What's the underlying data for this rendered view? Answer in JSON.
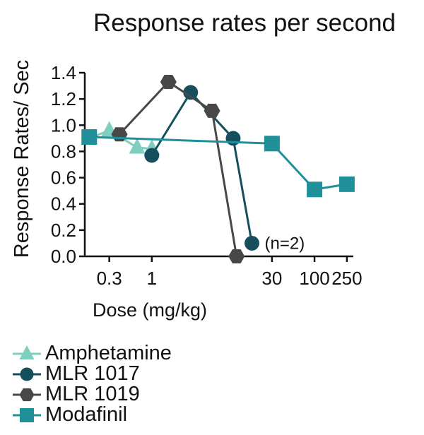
{
  "chart_data": {
    "type": "line",
    "title": "Response rates per second",
    "xlabel": "Dose (mg/kg)",
    "ylabel": "Response Rates/ Sec",
    "x_scale": "log",
    "xlim": [
      0.15,
      300
    ],
    "ylim": [
      0,
      1.4
    ],
    "x_ticks": [
      0.3,
      1,
      30,
      100,
      250
    ],
    "x_tick_labels": [
      "0.3",
      "1",
      "30",
      "100",
      "250"
    ],
    "y_ticks": [
      0,
      0.2,
      0.4,
      0.6,
      0.8,
      1.0,
      1.2,
      1.4
    ],
    "y_tick_labels": [
      "0.0",
      "0.2",
      "0.4",
      "0.6",
      "0.8",
      "1.0",
      "1.2",
      "1.4"
    ],
    "annotation": {
      "text": "(n=2)",
      "x": 17,
      "y": 0.1
    },
    "legend_position": "bottom-left",
    "series": [
      {
        "name": "Amphetamine",
        "color": "#7ecfbf",
        "marker": "triangle",
        "points": [
          [
            0.17,
            0.9
          ],
          [
            0.3,
            0.96
          ],
          [
            0.66,
            0.83
          ],
          [
            1,
            0.82
          ]
        ]
      },
      {
        "name": "MLR 1017",
        "color": "#154f5e",
        "marker": "circle",
        "points": [
          [
            1,
            0.77
          ],
          [
            3,
            1.25
          ],
          [
            10,
            0.9
          ],
          [
            17,
            0.1
          ]
        ]
      },
      {
        "name": "MLR 1019",
        "color": "#484848",
        "marker": "hexagon",
        "points": [
          [
            0.4,
            0.93
          ],
          [
            1.6,
            1.33
          ],
          [
            5.5,
            1.11
          ],
          [
            11,
            0.0
          ]
        ]
      },
      {
        "name": "Modafinil",
        "color": "#1f8f9a",
        "marker": "square",
        "points": [
          [
            0.17,
            0.91
          ],
          [
            30,
            0.86
          ],
          [
            100,
            0.51
          ],
          [
            250,
            0.55
          ]
        ]
      }
    ]
  }
}
